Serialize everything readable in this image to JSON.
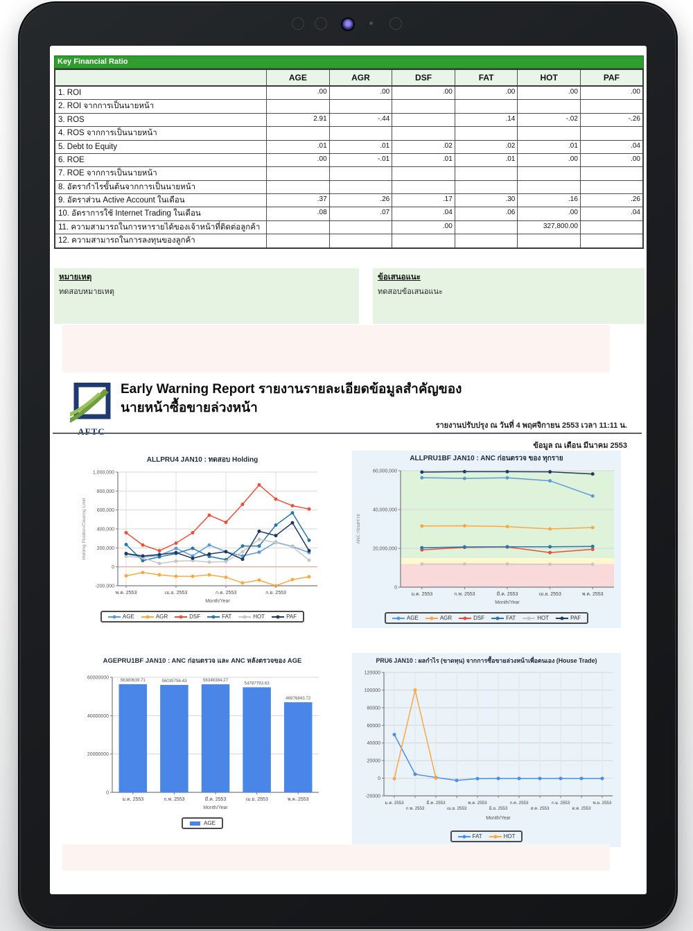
{
  "table": {
    "title": "Key Financial Ratio",
    "columns": [
      "AGE",
      "AGR",
      "DSF",
      "FAT",
      "HOT",
      "PAF"
    ],
    "rows": [
      {
        "label": "1. ROI",
        "values": [
          ".00",
          ".00",
          ".00",
          ".00",
          ".00",
          ".00"
        ]
      },
      {
        "label": "2. ROI จากการเป็นนายหน้า",
        "values": [
          "",
          "",
          "",
          "",
          "",
          ""
        ]
      },
      {
        "label": "3. ROS",
        "values": [
          "2.91",
          "-.44",
          "",
          ".14",
          "-.02",
          "-.26"
        ]
      },
      {
        "label": "4. ROS จากการเป็นนายหน้า",
        "values": [
          "",
          "",
          "",
          "",
          "",
          ""
        ]
      },
      {
        "label": "5. Debt to Equity",
        "values": [
          ".01",
          ".01",
          ".02",
          ".02",
          ".01",
          ".04"
        ]
      },
      {
        "label": "6. ROE",
        "values": [
          ".00",
          "-.01",
          ".01",
          ".01",
          ".00",
          ".00"
        ]
      },
      {
        "label": "7. ROE จากการเป็นนายหน้า",
        "values": [
          "",
          "",
          "",
          "",
          "",
          ""
        ]
      },
      {
        "label": "8. อัตรากำไรขั้นต้นจากการเป็นนายหน้า",
        "values": [
          "",
          "",
          "",
          "",
          "",
          ""
        ]
      },
      {
        "label": "9. อัตราส่วน Active Account ในเดือน",
        "values": [
          ".37",
          ".26",
          ".17",
          ".30",
          ".16",
          ".26"
        ]
      },
      {
        "label": "10. อัตราการใช้ Internet Trading ในเดือน",
        "values": [
          ".08",
          ".07",
          ".04",
          ".06",
          ".00",
          ".04"
        ]
      },
      {
        "label": "11. ความสามารถในการหารายได้ของเจ้าหน้าที่ติดต่อลูกค้า",
        "values": [
          "",
          "",
          ".00",
          "",
          "327,800.00",
          ""
        ]
      },
      {
        "label": "12. ความสามารถในการลงทุนของลูกค้า",
        "values": [
          "",
          "",
          "",
          "",
          "",
          ""
        ]
      }
    ]
  },
  "notes": {
    "left_title": "หมายเหตุ",
    "left_text": "ทดสอบหมายเหตุ",
    "right_title": "ข้อเสนอแนะ",
    "right_text": "ทดสอบข้อเสนอแนะ"
  },
  "report_header": {
    "logo_text": "AFTC",
    "title_line1": "Early Warning Report รายงานรายละเอียดข้อมูลสำคัญของ",
    "title_line2": "นายหน้าซื้อขายล่วงหน้า",
    "updated": "รายงานปรับปรุง ณ วันที่ 4 พฤศจิกายน 2553 เวลา 11:11 น.",
    "data_as_of": "ข้อมูล ณ เดือน มีนาคม 2553"
  },
  "colors": {
    "header_green": "#2f9e2f",
    "header_row_bg": "#eaf5ea",
    "note_bg": "#e6f3e2",
    "panel_blue": "#eaf2fa",
    "logo_navy": "#1e3a6e",
    "logo_green": "#6f9f3c",
    "band_green": "#def3da",
    "band_yellow": "#fdf8cf",
    "band_red": "#f9d9d9",
    "series": {
      "AGE": "#5b9bd5",
      "AGR": "#f9a844",
      "DSF": "#e8503a",
      "FAT": "#2877a8",
      "HOT": "#c6c6c6",
      "PAF": "#1f3864"
    }
  },
  "chart_data": [
    {
      "type": "line",
      "title": "ALLPRU4 JAN10 : ทดสอบ Holding",
      "xlabel": "Month/Year",
      "ylabel": "Holding Position/Clearing Limit",
      "ylim": [
        -200000,
        1000000
      ],
      "ytick_step": 200000,
      "ytick_commas": true,
      "zero_line": true,
      "x_tick_positions": [
        0,
        3,
        6,
        9
      ],
      "x_tick_labels": [
        "พ.ค. 2553",
        "เม.ย. 2553",
        "ก.ค. 2553",
        "ก.ย. 2553"
      ],
      "legend_position": "bottom",
      "series": [
        {
          "name": "AGE",
          "color": "#5b9bd5",
          "values": [
            135000,
            105000,
            120000,
            195000,
            115000,
            230000,
            160000,
            115000,
            155000,
            260000,
            215000,
            150000
          ]
        },
        {
          "name": "AGR",
          "color": "#f9a844",
          "values": [
            -95000,
            -60000,
            -85000,
            -100000,
            -100000,
            -85000,
            -110000,
            -170000,
            -140000,
            -200000,
            -135000,
            -105000
          ]
        },
        {
          "name": "DSF",
          "color": "#e8503a",
          "values": [
            360000,
            230000,
            170000,
            250000,
            360000,
            545000,
            470000,
            660000,
            865000,
            715000,
            645000,
            610000
          ]
        },
        {
          "name": "FAT",
          "color": "#2877a8",
          "values": [
            235000,
            65000,
            105000,
            140000,
            195000,
            110000,
            75000,
            220000,
            220000,
            440000,
            570000,
            280000
          ]
        },
        {
          "name": "HOT",
          "color": "#c6c6c6",
          "values": [
            110000,
            95000,
            35000,
            60000,
            65000,
            50000,
            55000,
            160000,
            290000,
            255000,
            210000,
            70000
          ]
        },
        {
          "name": "PAF",
          "color": "#1f3864",
          "values": [
            140000,
            115000,
            130000,
            150000,
            90000,
            135000,
            160000,
            80000,
            375000,
            330000,
            465000,
            170000
          ]
        }
      ]
    },
    {
      "type": "line",
      "title": "ALLPRU1BF JAN10 : ANC ก่อนตรวจ ของ ทุกราย",
      "xlabel": "Month/Year",
      "ylabel": "ANC ก่อนตรวจ",
      "ylim": [
        0,
        60000000
      ],
      "ytick_step": 20000000,
      "ytick_commas": true,
      "bands": [
        {
          "from": 0,
          "to": 12000000,
          "color": "#f9d9d9"
        },
        {
          "from": 12000000,
          "to": 15000000,
          "color": "#fdf8cf"
        },
        {
          "from": 15000000,
          "to": 60000000,
          "color": "#def3da"
        }
      ],
      "x_labels": [
        "ม.ค. 2553",
        "ก.พ. 2553",
        "มี.ค. 2553",
        "เม.ย. 2553",
        "พ.ค. 2553"
      ],
      "legend_position": "bottom",
      "series": [
        {
          "name": "AGE",
          "color": "#5b9bd5",
          "values": [
            56380639.71,
            56035756.43,
            56348384.27,
            54787793.63,
            46976843.72
          ]
        },
        {
          "name": "AGR",
          "color": "#f9a844",
          "values": [
            31500000,
            31600000,
            31200000,
            30000000,
            30700000
          ]
        },
        {
          "name": "DSF",
          "color": "#e8503a",
          "values": [
            19200000,
            20500000,
            20700000,
            17800000,
            19500000
          ]
        },
        {
          "name": "FAT",
          "color": "#2877a8",
          "values": [
            20300000,
            20700000,
            20800000,
            20800000,
            21000000
          ]
        },
        {
          "name": "HOT",
          "color": "#c6c6c6",
          "values": [
            11900000,
            11900000,
            11900000,
            11800000,
            11800000
          ]
        },
        {
          "name": "PAF",
          "color": "#1f3864",
          "values": [
            59300000,
            59500000,
            59500000,
            59400000,
            58300000
          ]
        }
      ]
    },
    {
      "type": "bar",
      "title": "AGEPRU1BF JAN10 : ANC ก่อนตรวจ และ ANC หลังตรวจของ AGE",
      "xlabel": "Month/Year",
      "ylabel": "",
      "ylim": [
        0,
        60000000
      ],
      "ytick_step": 20000000,
      "ytick_commas": false,
      "categories": [
        "ม.ค. 2553",
        "ก.พ. 2553",
        "มี.ค. 2553",
        "เม.ย. 2553",
        "พ.ค. 2553"
      ],
      "value_labels": [
        "56380639.71",
        "56035756.43",
        "56348384.27",
        "54787793.63",
        "46976843.72"
      ],
      "legend_position": "bottom",
      "series": [
        {
          "name": "AGE",
          "color": "#4a86e8",
          "values": [
            56380639.71,
            56035756.43,
            56348384.27,
            54787793.63,
            46976843.72
          ]
        }
      ]
    },
    {
      "type": "line",
      "title": "PRU6 JAN10 : ผลกำไร (ขาดทุน) จากการซื้อขายล่วงหน้าเพื่อตนเอง (House Trade)",
      "xlabel": "Month/Year",
      "ylabel": "",
      "ylim": [
        -20000,
        120000
      ],
      "ytick_step": 20000,
      "ytick_commas": false,
      "stagger_x_labels": true,
      "x_labels": [
        "ม.ค. 2553",
        "ก.พ. 2553",
        "มี.ค. 2553",
        "เม.ย. 2553",
        "พ.ค. 2553",
        "มิ.ย. 2553",
        "ก.ค. 2553",
        "ส.ค. 2553",
        "ก.ย. 2553",
        "ต.ค. 2553",
        "พ.ย. 2553"
      ],
      "legend_position": "bottom",
      "series": [
        {
          "name": "FAT",
          "color": "#4a90e2",
          "values": [
            49500,
            4500,
            800,
            -2500,
            -500,
            -300,
            -300,
            -300,
            -300,
            -300,
            -300
          ]
        },
        {
          "name": "HOT",
          "color": "#f9a844",
          "values": [
            -500,
            100000,
            0,
            null,
            null,
            null,
            null,
            null,
            null,
            null,
            null
          ]
        }
      ]
    }
  ]
}
